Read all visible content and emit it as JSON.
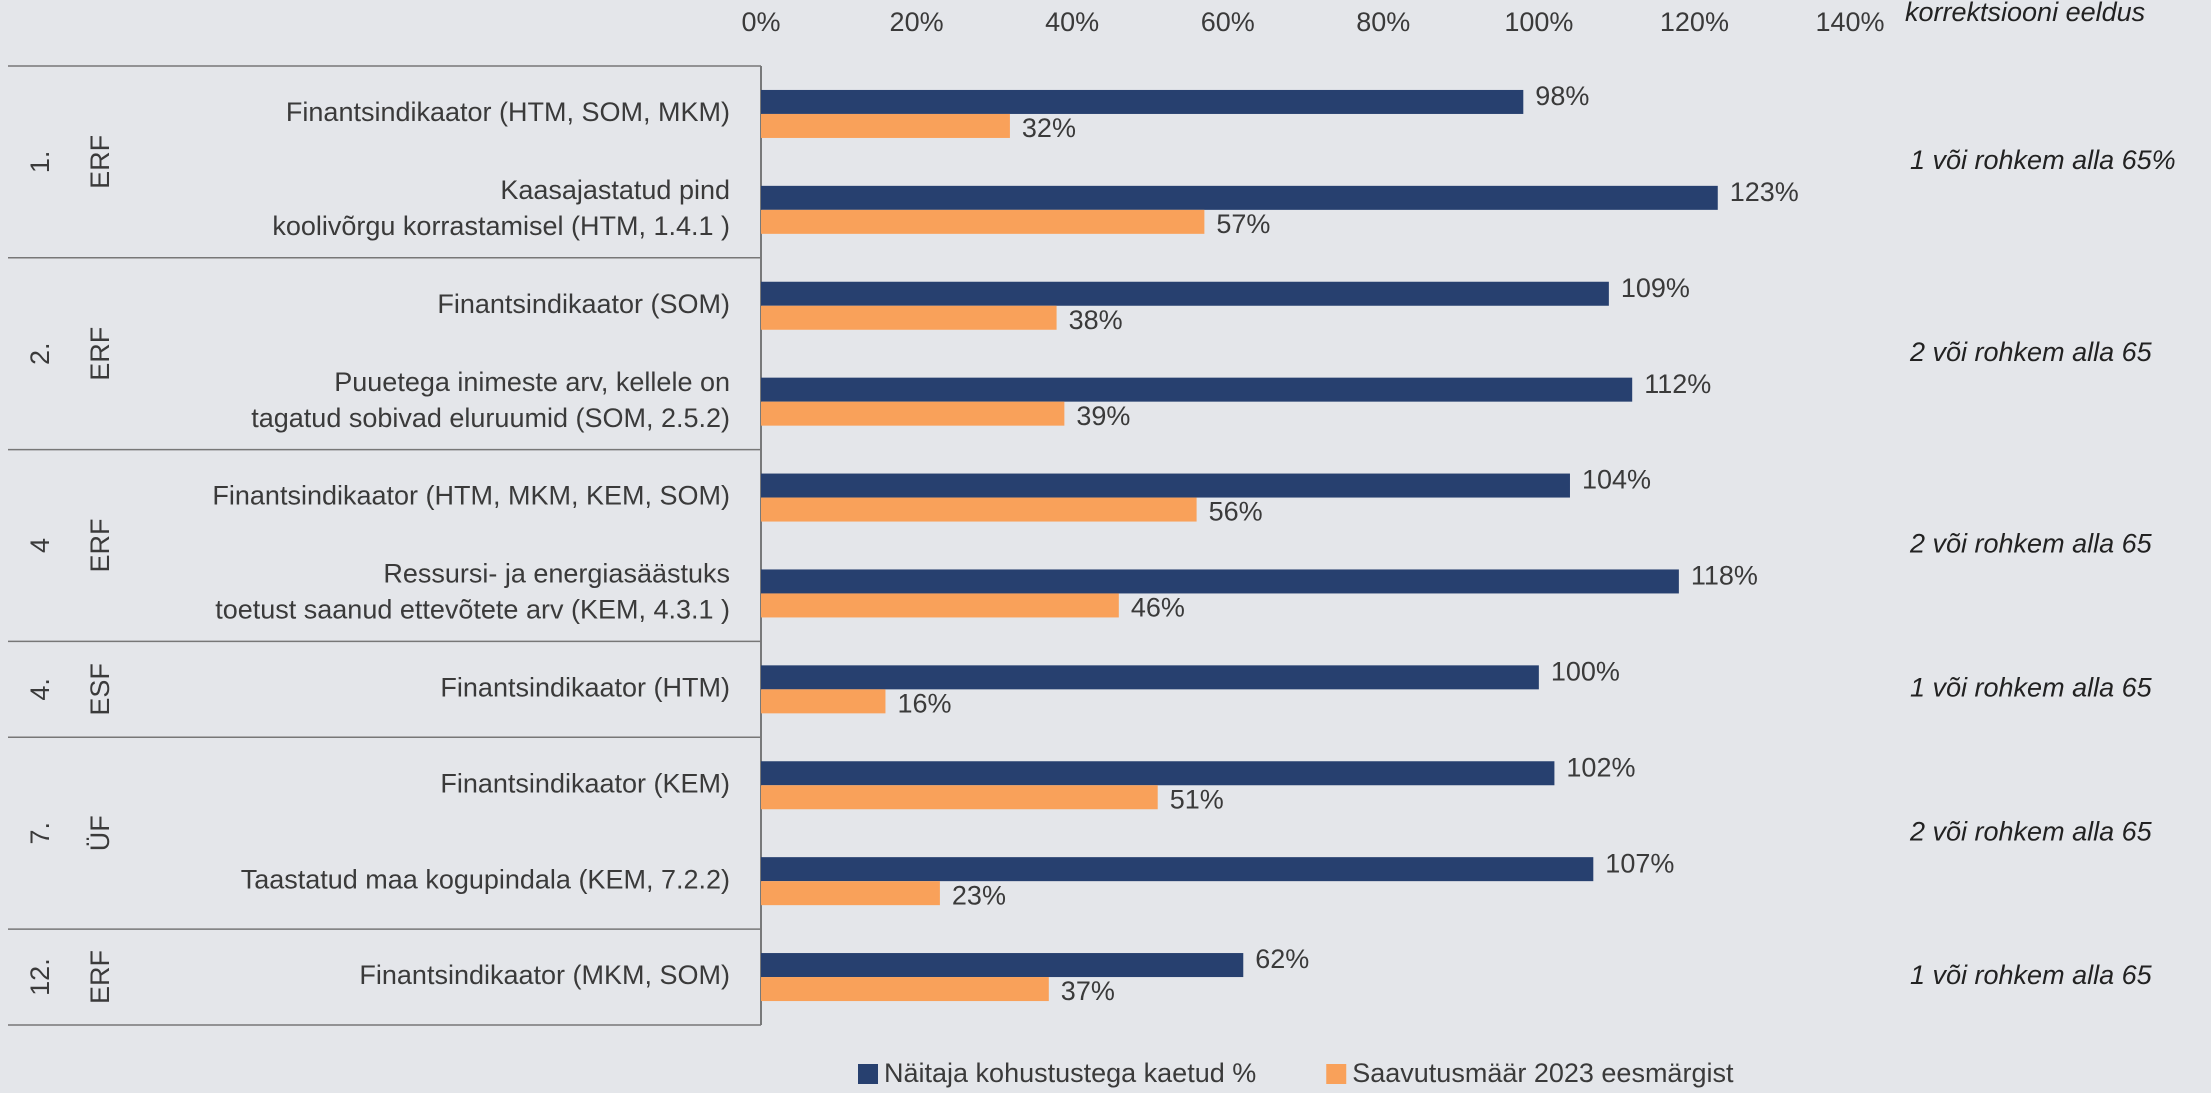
{
  "chart_data": {
    "type": "bar",
    "orientation": "horizontal",
    "header": "korrektsiooni eeldus",
    "xlim": [
      0,
      140
    ],
    "xticks": [
      {
        "value": 0,
        "label": "0%"
      },
      {
        "value": 20,
        "label": "20%"
      },
      {
        "value": 40,
        "label": "40%"
      },
      {
        "value": 60,
        "label": "60%"
      },
      {
        "value": 80,
        "label": "80%"
      },
      {
        "value": 100,
        "label": "100%"
      },
      {
        "value": 120,
        "label": "120%"
      },
      {
        "value": 140,
        "label": "140%"
      }
    ],
    "groups": [
      {
        "number": "1.",
        "fund": "ERF",
        "note": "1 või rohkem alla 65%",
        "categories": [
          [
            "Finantsindikaator (HTM, SOM, MKM)"
          ],
          [
            "Kaasajastatud pind",
            "koolivõrgu korrastamisel (HTM, 1.4.1 )"
          ]
        ]
      },
      {
        "number": "2.",
        "fund": "ERF",
        "note": "2 või rohkem alla 65",
        "categories": [
          [
            "Finantsindikaator (SOM)"
          ],
          [
            "Puuetega inimeste arv, kellele on",
            "tagatud sobivad eluruumid (SOM, 2.5.2)"
          ]
        ]
      },
      {
        "number": "4",
        "fund": "ERF",
        "note": "2 või rohkem alla 65",
        "categories": [
          [
            "Finantsindikaator (HTM, MKM, KEM, SOM)"
          ],
          [
            "Ressursi- ja energiasäästuks",
            "toetust saanud ettevõtete arv (KEM, 4.3.1 )"
          ]
        ]
      },
      {
        "number": "4.",
        "fund": "ESF",
        "note": "1 või rohkem alla 65",
        "categories": [
          [
            "Finantsindikaator (HTM)"
          ]
        ]
      },
      {
        "number": "7.",
        "fund": "ÜF",
        "note": "2 või rohkem alla 65",
        "categories": [
          [
            "Finantsindikaator (KEM)"
          ],
          [
            "Taastatud maa kogupindala (KEM, 7.2.2)"
          ]
        ]
      },
      {
        "number": "12.",
        "fund": "ERF",
        "note": "1 või rohkem alla 65",
        "categories": [
          [
            "Finantsindikaator (MKM, SOM)"
          ]
        ]
      }
    ],
    "series": [
      {
        "name": "Näitaja kohustustega kaetud %",
        "color": "#27406f",
        "values": [
          98,
          123,
          109,
          112,
          104,
          118,
          100,
          102,
          107,
          62
        ],
        "value_labels": [
          "98%",
          "123%",
          "109%",
          "112%",
          "104%",
          "118%",
          "100%",
          "102%",
          "107%",
          "62%"
        ]
      },
      {
        "name": "Saavutusmäär 2023 eesmärgist",
        "color": "#f9a15a",
        "values": [
          32,
          57,
          38,
          39,
          56,
          46,
          16,
          51,
          23,
          37
        ],
        "value_labels": [
          "32%",
          "57%",
          "38%",
          "39%",
          "56%",
          "46%",
          "16%",
          "51%",
          "23%",
          "37%"
        ]
      }
    ]
  }
}
